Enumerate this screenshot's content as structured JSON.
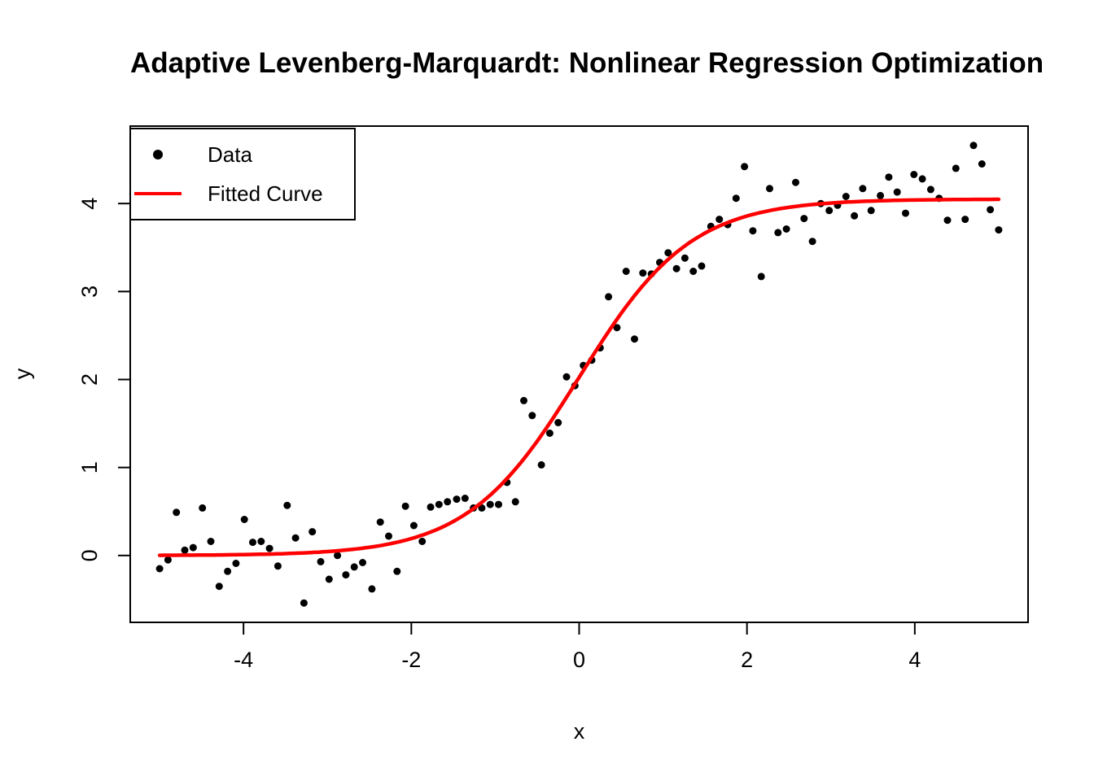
{
  "chart_data": {
    "type": "scatter",
    "title": "Adaptive Levenberg-Marquardt: Nonlinear Regression Optimization",
    "xlabel": "x",
    "ylabel": "y",
    "xlim": [
      -5.35,
      5.35
    ],
    "ylim": [
      -0.76,
      4.88
    ],
    "x_ticks": [
      -4,
      -2,
      0,
      2,
      4
    ],
    "y_ticks": [
      0,
      1,
      2,
      3,
      4
    ],
    "grid": false,
    "background": "#ffffff",
    "point_color": "#000000",
    "curve_color": "#FF0000",
    "legend_position": "top-left",
    "legend": [
      {
        "label": "Data",
        "marker": "point",
        "color": "#000000"
      },
      {
        "label": "Fitted Curve",
        "marker": "line",
        "color": "#FF0000"
      }
    ],
    "points": [
      [
        -5.0,
        -0.15
      ],
      [
        -4.9,
        -0.05
      ],
      [
        -4.8,
        0.49
      ],
      [
        -4.7,
        0.06
      ],
      [
        -4.6,
        0.09
      ],
      [
        -4.49,
        0.54
      ],
      [
        -4.39,
        0.16
      ],
      [
        -4.29,
        -0.35
      ],
      [
        -4.19,
        -0.18
      ],
      [
        -4.09,
        -0.09
      ],
      [
        -3.99,
        0.41
      ],
      [
        -3.89,
        0.15
      ],
      [
        -3.79,
        0.16
      ],
      [
        -3.69,
        0.08
      ],
      [
        -3.59,
        -0.12
      ],
      [
        -3.48,
        0.57
      ],
      [
        -3.38,
        0.2
      ],
      [
        -3.28,
        -0.54
      ],
      [
        -3.18,
        0.27
      ],
      [
        -3.08,
        -0.07
      ],
      [
        -2.98,
        -0.27
      ],
      [
        -2.88,
        0.0
      ],
      [
        -2.78,
        -0.22
      ],
      [
        -2.68,
        -0.13
      ],
      [
        -2.58,
        -0.08
      ],
      [
        -2.47,
        -0.38
      ],
      [
        -2.37,
        0.38
      ],
      [
        -2.27,
        0.22
      ],
      [
        -2.17,
        -0.18
      ],
      [
        -2.07,
        0.56
      ],
      [
        -1.97,
        0.34
      ],
      [
        -1.87,
        0.16
      ],
      [
        -1.77,
        0.55
      ],
      [
        -1.67,
        0.58
      ],
      [
        -1.57,
        0.61
      ],
      [
        -1.46,
        0.64
      ],
      [
        -1.36,
        0.65
      ],
      [
        -1.26,
        0.54
      ],
      [
        -1.16,
        0.54
      ],
      [
        -1.06,
        0.58
      ],
      [
        -0.96,
        0.58
      ],
      [
        -0.86,
        0.83
      ],
      [
        -0.76,
        0.61
      ],
      [
        -0.66,
        1.76
      ],
      [
        -0.56,
        1.59
      ],
      [
        -0.45,
        1.03
      ],
      [
        -0.35,
        1.39
      ],
      [
        -0.25,
        1.51
      ],
      [
        -0.15,
        2.03
      ],
      [
        -0.05,
        1.93
      ],
      [
        0.05,
        2.16
      ],
      [
        0.15,
        2.22
      ],
      [
        0.25,
        2.36
      ],
      [
        0.35,
        2.94
      ],
      [
        0.45,
        2.59
      ],
      [
        0.56,
        3.23
      ],
      [
        0.66,
        2.46
      ],
      [
        0.76,
        3.21
      ],
      [
        0.86,
        3.2
      ],
      [
        0.96,
        3.33
      ],
      [
        1.06,
        3.44
      ],
      [
        1.16,
        3.26
      ],
      [
        1.26,
        3.38
      ],
      [
        1.36,
        3.23
      ],
      [
        1.46,
        3.29
      ],
      [
        1.57,
        3.74
      ],
      [
        1.67,
        3.82
      ],
      [
        1.77,
        3.76
      ],
      [
        1.87,
        4.06
      ],
      [
        1.97,
        4.42
      ],
      [
        2.07,
        3.69
      ],
      [
        2.17,
        3.17
      ],
      [
        2.27,
        4.17
      ],
      [
        2.37,
        3.67
      ],
      [
        2.47,
        3.71
      ],
      [
        2.58,
        4.24
      ],
      [
        2.68,
        3.83
      ],
      [
        2.78,
        3.57
      ],
      [
        2.88,
        4.0
      ],
      [
        2.98,
        3.92
      ],
      [
        3.08,
        3.98
      ],
      [
        3.18,
        4.08
      ],
      [
        3.28,
        3.86
      ],
      [
        3.38,
        4.17
      ],
      [
        3.48,
        3.92
      ],
      [
        3.59,
        4.09
      ],
      [
        3.69,
        4.3
      ],
      [
        3.79,
        4.13
      ],
      [
        3.89,
        3.89
      ],
      [
        3.99,
        4.33
      ],
      [
        4.09,
        4.28
      ],
      [
        4.19,
        4.16
      ],
      [
        4.29,
        4.06
      ],
      [
        4.39,
        3.81
      ],
      [
        4.49,
        4.4
      ],
      [
        4.6,
        3.82
      ],
      [
        4.7,
        4.66
      ],
      [
        4.8,
        4.45
      ],
      [
        4.9,
        3.93
      ],
      [
        5.0,
        3.7
      ]
    ],
    "fitted_curve": {
      "model": "logistic",
      "formula": "y = 4.05 / (1 + exp(-1.5 * x))",
      "asymptote": 4.05,
      "rate": 1.5,
      "midpoint": 0,
      "x_range": [
        -5,
        5
      ]
    }
  }
}
